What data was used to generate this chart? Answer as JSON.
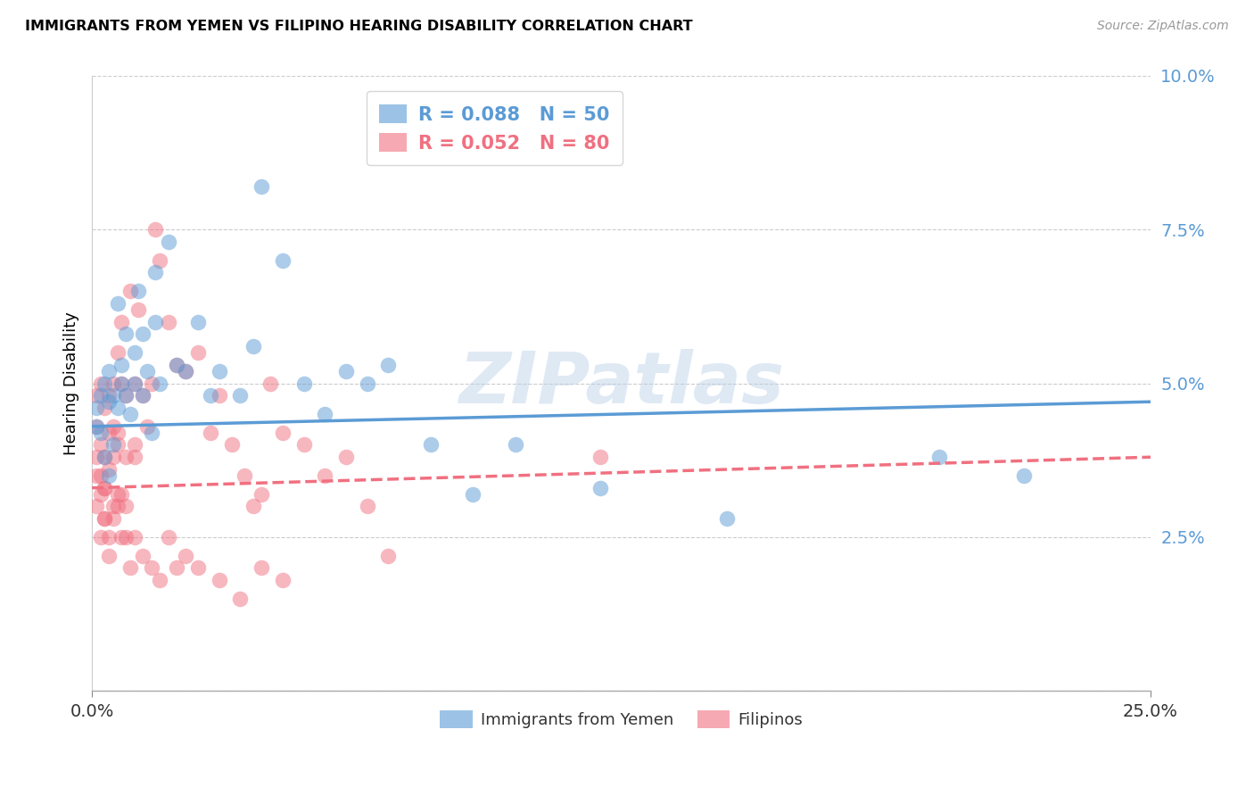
{
  "title": "IMMIGRANTS FROM YEMEN VS FILIPINO HEARING DISABILITY CORRELATION CHART",
  "source": "Source: ZipAtlas.com",
  "ylabel": "Hearing Disability",
  "yticks": [
    0.0,
    0.025,
    0.05,
    0.075,
    0.1
  ],
  "xlim": [
    0.0,
    0.25
  ],
  "ylim": [
    0.0,
    0.1
  ],
  "blue_color": "#5b9bd5",
  "pink_color": "#f07080",
  "blue_R": 0.088,
  "blue_N": 50,
  "pink_R": 0.052,
  "pink_N": 80,
  "blue_line_x0": 0.0,
  "blue_line_y0": 0.043,
  "blue_line_x1": 0.25,
  "blue_line_y1": 0.047,
  "pink_line_x0": 0.0,
  "pink_line_y0": 0.033,
  "pink_line_x1": 0.25,
  "pink_line_y1": 0.038,
  "blue_scatter_x": [
    0.001,
    0.001,
    0.002,
    0.002,
    0.003,
    0.003,
    0.004,
    0.004,
    0.004,
    0.005,
    0.005,
    0.006,
    0.006,
    0.007,
    0.007,
    0.008,
    0.008,
    0.009,
    0.01,
    0.01,
    0.011,
    0.012,
    0.012,
    0.013,
    0.014,
    0.015,
    0.015,
    0.016,
    0.018,
    0.02,
    0.022,
    0.025,
    0.028,
    0.03,
    0.035,
    0.038,
    0.04,
    0.045,
    0.05,
    0.055,
    0.06,
    0.065,
    0.07,
    0.08,
    0.09,
    0.1,
    0.12,
    0.15,
    0.2,
    0.22
  ],
  "blue_scatter_y": [
    0.046,
    0.043,
    0.048,
    0.042,
    0.05,
    0.038,
    0.047,
    0.052,
    0.035,
    0.048,
    0.04,
    0.063,
    0.046,
    0.053,
    0.05,
    0.058,
    0.048,
    0.045,
    0.055,
    0.05,
    0.065,
    0.058,
    0.048,
    0.052,
    0.042,
    0.068,
    0.06,
    0.05,
    0.073,
    0.053,
    0.052,
    0.06,
    0.048,
    0.052,
    0.048,
    0.056,
    0.082,
    0.07,
    0.05,
    0.045,
    0.052,
    0.05,
    0.053,
    0.04,
    0.032,
    0.04,
    0.033,
    0.028,
    0.038,
    0.035
  ],
  "pink_scatter_x": [
    0.001,
    0.001,
    0.001,
    0.001,
    0.002,
    0.002,
    0.002,
    0.003,
    0.003,
    0.003,
    0.003,
    0.004,
    0.004,
    0.004,
    0.005,
    0.005,
    0.005,
    0.006,
    0.006,
    0.006,
    0.007,
    0.007,
    0.008,
    0.008,
    0.009,
    0.01,
    0.01,
    0.011,
    0.012,
    0.013,
    0.014,
    0.015,
    0.016,
    0.018,
    0.02,
    0.022,
    0.025,
    0.028,
    0.03,
    0.033,
    0.036,
    0.038,
    0.04,
    0.042,
    0.045,
    0.05,
    0.055,
    0.06,
    0.065,
    0.07,
    0.002,
    0.003,
    0.004,
    0.005,
    0.006,
    0.007,
    0.008,
    0.009,
    0.01,
    0.012,
    0.014,
    0.016,
    0.018,
    0.02,
    0.022,
    0.025,
    0.03,
    0.035,
    0.04,
    0.045,
    0.001,
    0.002,
    0.003,
    0.004,
    0.005,
    0.006,
    0.007,
    0.008,
    0.01,
    0.12
  ],
  "pink_scatter_y": [
    0.048,
    0.043,
    0.035,
    0.03,
    0.05,
    0.04,
    0.032,
    0.046,
    0.038,
    0.033,
    0.028,
    0.042,
    0.036,
    0.025,
    0.05,
    0.038,
    0.03,
    0.055,
    0.042,
    0.03,
    0.06,
    0.05,
    0.048,
    0.038,
    0.065,
    0.05,
    0.04,
    0.062,
    0.048,
    0.043,
    0.05,
    0.075,
    0.07,
    0.06,
    0.053,
    0.052,
    0.055,
    0.042,
    0.048,
    0.04,
    0.035,
    0.03,
    0.032,
    0.05,
    0.042,
    0.04,
    0.035,
    0.038,
    0.03,
    0.022,
    0.025,
    0.028,
    0.022,
    0.028,
    0.032,
    0.025,
    0.03,
    0.02,
    0.025,
    0.022,
    0.02,
    0.018,
    0.025,
    0.02,
    0.022,
    0.02,
    0.018,
    0.015,
    0.02,
    0.018,
    0.038,
    0.035,
    0.033,
    0.048,
    0.043,
    0.04,
    0.032,
    0.025,
    0.038,
    0.038
  ]
}
